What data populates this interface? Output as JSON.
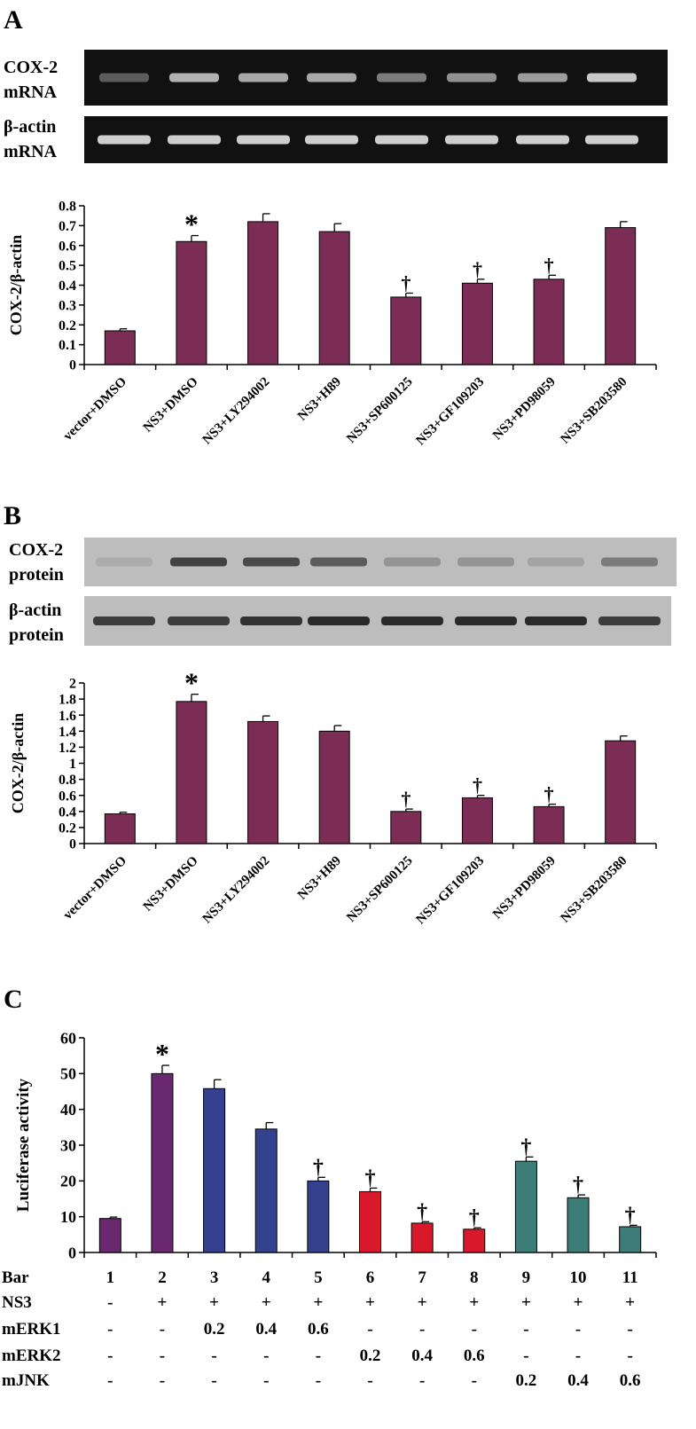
{
  "panels": {
    "A": {
      "letter": "A",
      "gel_labels": {
        "top_line1": "COX-2",
        "top_line2": "mRNA",
        "bottom_line1": "β-actin",
        "bottom_line2": "mRNA"
      }
    },
    "B": {
      "letter": "B",
      "gel_labels": {
        "top_line1": "COX-2",
        "top_line2": "protein",
        "bottom_line1": "β-actin",
        "bottom_line2": "protein"
      }
    },
    "C": {
      "letter": "C"
    }
  },
  "colors": {
    "bar_maroon": "#7b2d55",
    "bar_purple": "#6a2870",
    "bar_blue": "#33418e",
    "bar_red": "#d8182b",
    "bar_teal": "#3d7d78",
    "gel_dark": "#111111",
    "blot_light": "#bdbdbd"
  },
  "chart_data": [
    {
      "type": "bar",
      "panel": "A",
      "categories": [
        "vector+DMSO",
        "NS3+DMSO",
        "NS3+LY294002",
        "NS3+H89",
        "NS3+SP600125",
        "NS3+GF109203",
        "NS3+PD98059",
        "NS3+SB203580"
      ],
      "values": [
        0.17,
        0.62,
        0.72,
        0.67,
        0.34,
        0.41,
        0.43,
        0.69
      ],
      "errors": [
        0.01,
        0.03,
        0.04,
        0.04,
        0.02,
        0.02,
        0.02,
        0.03
      ],
      "markers": [
        "",
        "*",
        "",
        "",
        "†",
        "†",
        "†",
        ""
      ],
      "ylabel": "COX-2/β-actin",
      "ylim": [
        0,
        0.8
      ],
      "yticks": [
        "0",
        "0.1",
        "0.2",
        "0.3",
        "0.4",
        "0.5",
        "0.6",
        "0.7",
        "0.8"
      ],
      "grid": false
    },
    {
      "type": "bar",
      "panel": "B",
      "categories": [
        "vector+DMSO",
        "NS3+DMSO",
        "NS3+LY294002",
        "NS3+H89",
        "NS3+SP600125",
        "NS3+GF109203",
        "NS3+PD98059",
        "NS3+SB203580"
      ],
      "values": [
        0.37,
        1.77,
        1.52,
        1.4,
        0.4,
        0.57,
        0.46,
        1.28
      ],
      "errors": [
        0.02,
        0.09,
        0.07,
        0.07,
        0.03,
        0.03,
        0.03,
        0.06
      ],
      "markers": [
        "",
        "*",
        "",
        "",
        "†",
        "†",
        "†",
        ""
      ],
      "ylabel": "COX-2/β-actin",
      "ylim": [
        0,
        2
      ],
      "yticks": [
        "0",
        "0.2",
        "0.4",
        "0.6",
        "0.8",
        "1",
        "1.2",
        "1.4",
        "1.6",
        "1.8",
        "2"
      ],
      "grid": false
    },
    {
      "type": "bar",
      "panel": "C",
      "categories": [
        "1",
        "2",
        "3",
        "4",
        "5",
        "6",
        "7",
        "8",
        "9",
        "10",
        "11"
      ],
      "values": [
        9.5,
        50,
        45.8,
        34.5,
        20,
        17,
        8.2,
        6.5,
        25.5,
        15.3,
        7.2
      ],
      "errors": [
        0.4,
        2.3,
        2.5,
        1.8,
        1.0,
        1.0,
        0.4,
        0.4,
        1.2,
        0.8,
        0.4
      ],
      "markers": [
        "",
        "*",
        "",
        "",
        "†",
        "†",
        "†",
        "†",
        "†",
        "†",
        "†"
      ],
      "bar_colors": [
        "#6a2870",
        "#6a2870",
        "#33418e",
        "#33418e",
        "#33418e",
        "#d8182b",
        "#d8182b",
        "#d8182b",
        "#3d7d78",
        "#3d7d78",
        "#3d7d78"
      ],
      "ylabel": "Luciferase activity",
      "ylim": [
        0,
        60
      ],
      "yticks": [
        "0",
        "10",
        "20",
        "30",
        "40",
        "50",
        "60"
      ],
      "grid": false,
      "table": {
        "rows": [
          {
            "label": "Bar",
            "cells": [
              "1",
              "2",
              "3",
              "4",
              "5",
              "6",
              "7",
              "8",
              "9",
              "10",
              "11"
            ]
          },
          {
            "label": "NS3",
            "cells": [
              "-",
              "+",
              "+",
              "+",
              "+",
              "+",
              "+",
              "+",
              "+",
              "+",
              "+"
            ]
          },
          {
            "label": "mERK1",
            "cells": [
              "-",
              "-",
              "0.2",
              "0.4",
              "0.6",
              "-",
              "-",
              "-",
              "-",
              "-",
              "-"
            ]
          },
          {
            "label": "mERK2",
            "cells": [
              "-",
              "-",
              "-",
              "-",
              "-",
              "0.2",
              "0.4",
              "0.6",
              "-",
              "-",
              "-"
            ]
          },
          {
            "label": "mJNK",
            "cells": [
              "-",
              "-",
              "-",
              "-",
              "-",
              "-",
              "-",
              "-",
              "0.2",
              "0.4",
              "0.6"
            ]
          }
        ]
      }
    }
  ]
}
